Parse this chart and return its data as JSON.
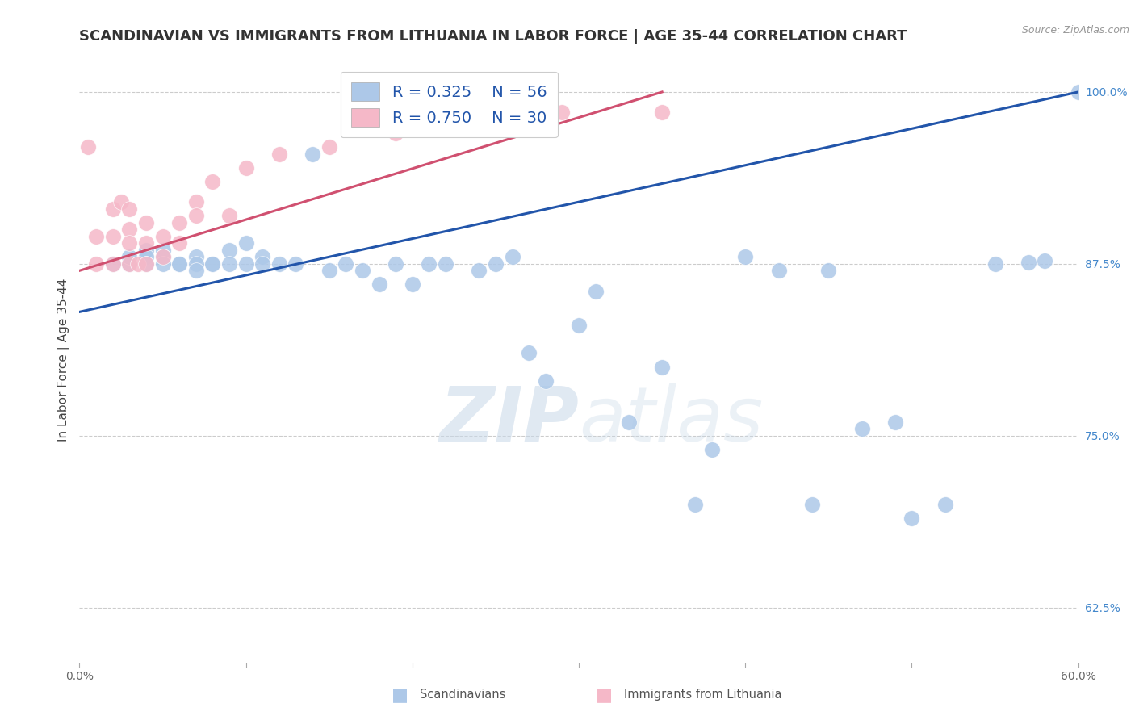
{
  "title": "SCANDINAVIAN VS IMMIGRANTS FROM LITHUANIA IN LABOR FORCE | AGE 35-44 CORRELATION CHART",
  "source": "Source: ZipAtlas.com",
  "ylabel": "In Labor Force | Age 35-44",
  "xlim": [
    0.0,
    0.6
  ],
  "ylim": [
    0.585,
    1.025
  ],
  "xticks": [
    0.0,
    0.1,
    0.2,
    0.3,
    0.4,
    0.5,
    0.6
  ],
  "xtick_labels": [
    "0.0%",
    "",
    "",
    "",
    "",
    "",
    "60.0%"
  ],
  "ytick_labels_right": [
    "100.0%",
    "87.5%",
    "75.0%",
    "62.5%"
  ],
  "yticks_right": [
    1.0,
    0.875,
    0.75,
    0.625
  ],
  "legend_blue_R": "R = 0.325",
  "legend_blue_N": "N = 56",
  "legend_pink_R": "R = 0.750",
  "legend_pink_N": "N = 30",
  "blue_color": "#adc8e8",
  "pink_color": "#f5b8c8",
  "blue_line_color": "#2255aa",
  "pink_line_color": "#d05070",
  "watermark_zip": "ZIP",
  "watermark_atlas": "atlas",
  "title_fontsize": 13,
  "axis_label_fontsize": 11,
  "tick_fontsize": 10,
  "blue_scatter_x": [
    0.02,
    0.03,
    0.03,
    0.04,
    0.04,
    0.04,
    0.05,
    0.05,
    0.05,
    0.06,
    0.06,
    0.07,
    0.07,
    0.07,
    0.08,
    0.08,
    0.09,
    0.09,
    0.1,
    0.1,
    0.11,
    0.11,
    0.12,
    0.13,
    0.14,
    0.15,
    0.16,
    0.17,
    0.18,
    0.19,
    0.2,
    0.21,
    0.22,
    0.24,
    0.25,
    0.26,
    0.27,
    0.28,
    0.3,
    0.31,
    0.33,
    0.35,
    0.37,
    0.38,
    0.4,
    0.42,
    0.44,
    0.45,
    0.47,
    0.49,
    0.5,
    0.52,
    0.55,
    0.57,
    0.58,
    0.6
  ],
  "blue_scatter_y": [
    0.875,
    0.875,
    0.88,
    0.885,
    0.88,
    0.875,
    0.885,
    0.88,
    0.875,
    0.875,
    0.875,
    0.88,
    0.875,
    0.87,
    0.875,
    0.875,
    0.885,
    0.875,
    0.89,
    0.875,
    0.88,
    0.875,
    0.875,
    0.875,
    0.955,
    0.87,
    0.875,
    0.87,
    0.86,
    0.875,
    0.86,
    0.875,
    0.875,
    0.87,
    0.875,
    0.88,
    0.81,
    0.79,
    0.83,
    0.855,
    0.76,
    0.8,
    0.7,
    0.74,
    0.88,
    0.87,
    0.7,
    0.87,
    0.755,
    0.76,
    0.69,
    0.7,
    0.875,
    0.876,
    0.877,
    1.0
  ],
  "pink_scatter_x": [
    0.005,
    0.01,
    0.01,
    0.02,
    0.02,
    0.02,
    0.025,
    0.03,
    0.03,
    0.03,
    0.03,
    0.035,
    0.04,
    0.04,
    0.04,
    0.05,
    0.05,
    0.06,
    0.06,
    0.07,
    0.07,
    0.08,
    0.09,
    0.1,
    0.12,
    0.15,
    0.19,
    0.24,
    0.29,
    0.35
  ],
  "pink_scatter_y": [
    0.96,
    0.895,
    0.875,
    0.915,
    0.895,
    0.875,
    0.92,
    0.915,
    0.9,
    0.89,
    0.875,
    0.875,
    0.905,
    0.89,
    0.875,
    0.895,
    0.88,
    0.905,
    0.89,
    0.92,
    0.91,
    0.935,
    0.91,
    0.945,
    0.955,
    0.96,
    0.97,
    0.975,
    0.985,
    0.985
  ],
  "blue_line_x": [
    0.0,
    0.6
  ],
  "blue_line_y": [
    0.84,
    1.0
  ],
  "pink_line_x": [
    0.0,
    0.35
  ],
  "pink_line_y": [
    0.87,
    1.0
  ]
}
